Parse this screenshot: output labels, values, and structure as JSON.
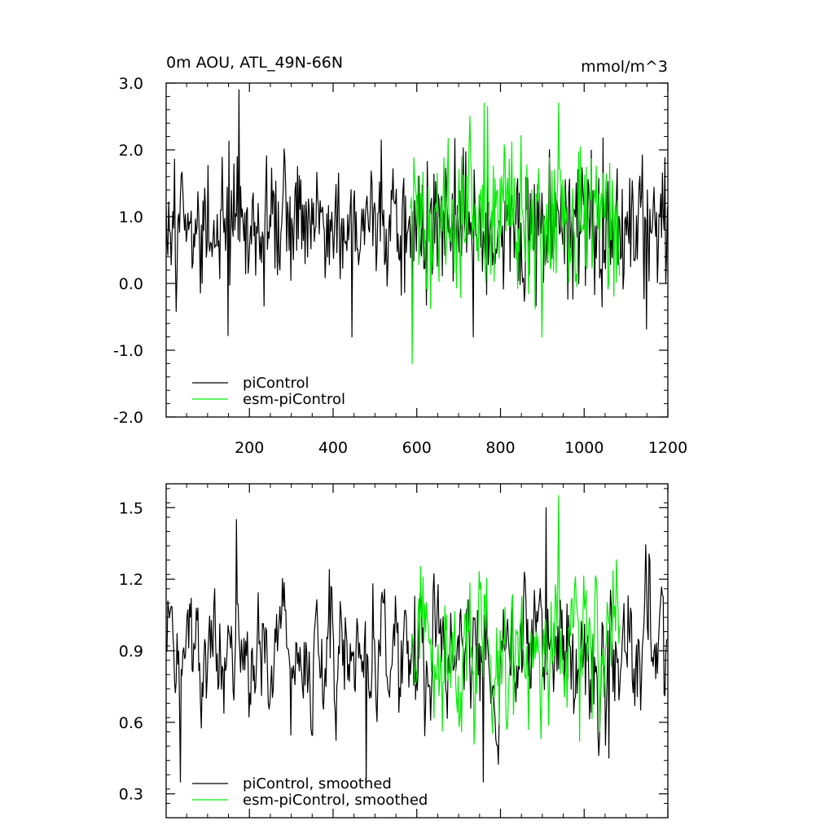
{
  "colors": {
    "picontrol": "#000000",
    "esm_picontrol": "#00ee00",
    "frame": "#000000",
    "background": "#ffffff"
  },
  "chart_data": [
    {
      "type": "line",
      "title": "0m AOU, ATL_49N-66N",
      "units": "mmol/m^3",
      "xlim": [
        1,
        1200
      ],
      "ylim": [
        -2.0,
        3.0
      ],
      "xticks": [
        200,
        400,
        600,
        800,
        1000,
        1200
      ],
      "xtick_labels": [
        "200",
        "400",
        "600",
        "800",
        "1000",
        "1200"
      ],
      "yticks": [
        -2.0,
        -1.0,
        0.0,
        1.0,
        2.0,
        3.0
      ],
      "ytick_labels": [
        "-2.0",
        "-1.0",
        "0.0",
        "1.0",
        "2.0",
        "3.0"
      ],
      "grid": false,
      "legend_position": "bottom-left",
      "series": [
        {
          "name": "piControl",
          "color": "#000000",
          "x_range": [
            1,
            1200
          ],
          "y_mean": 0.9,
          "y_std": 0.5,
          "y_min": -0.8,
          "y_max": 2.9,
          "notable_points": [
            [
              175,
              2.9
            ],
            [
              150,
              -0.78
            ],
            [
              445,
              -0.8
            ],
            [
              590,
              -0.5
            ]
          ]
        },
        {
          "name": "esm-piControl",
          "color": "#00ee00",
          "x_range": [
            585,
            1085
          ],
          "y_mean": 0.95,
          "y_std": 0.6,
          "y_min": -1.2,
          "y_max": 2.7,
          "notable_points": [
            [
              590,
              -1.2
            ],
            [
              770,
              2.65
            ],
            [
              900,
              -0.8
            ]
          ]
        }
      ]
    },
    {
      "type": "line",
      "xlim": [
        1,
        1200
      ],
      "ylim": [
        0.2,
        1.6
      ],
      "xticks": [
        200,
        400,
        600,
        800,
        1000,
        1200
      ],
      "yticks": [
        0.3,
        0.6,
        0.9,
        1.2,
        1.5
      ],
      "ytick_labels": [
        "0.3",
        "0.6",
        "0.9",
        "1.2",
        "1.5"
      ],
      "grid": false,
      "legend_position": "bottom-left",
      "series": [
        {
          "name": "piControl, smoothed",
          "color": "#000000",
          "x_range": [
            1,
            1200
          ],
          "y_mean": 0.9,
          "y_std": 0.17,
          "y_min": 0.33,
          "y_max": 1.5,
          "notable_points": [
            [
              35,
              0.35
            ],
            [
              170,
              1.45
            ],
            [
              480,
              0.33
            ],
            [
              760,
              0.35
            ],
            [
              910,
              1.5
            ],
            [
              1060,
              0.45
            ]
          ]
        },
        {
          "name": "esm-piControl, smoothed",
          "color": "#00ee00",
          "x_range": [
            585,
            1085
          ],
          "y_mean": 0.92,
          "y_std": 0.2,
          "y_min": 0.5,
          "y_max": 1.55,
          "notable_points": [
            [
              940,
              1.55
            ],
            [
              990,
              0.52
            ]
          ]
        }
      ]
    }
  ]
}
